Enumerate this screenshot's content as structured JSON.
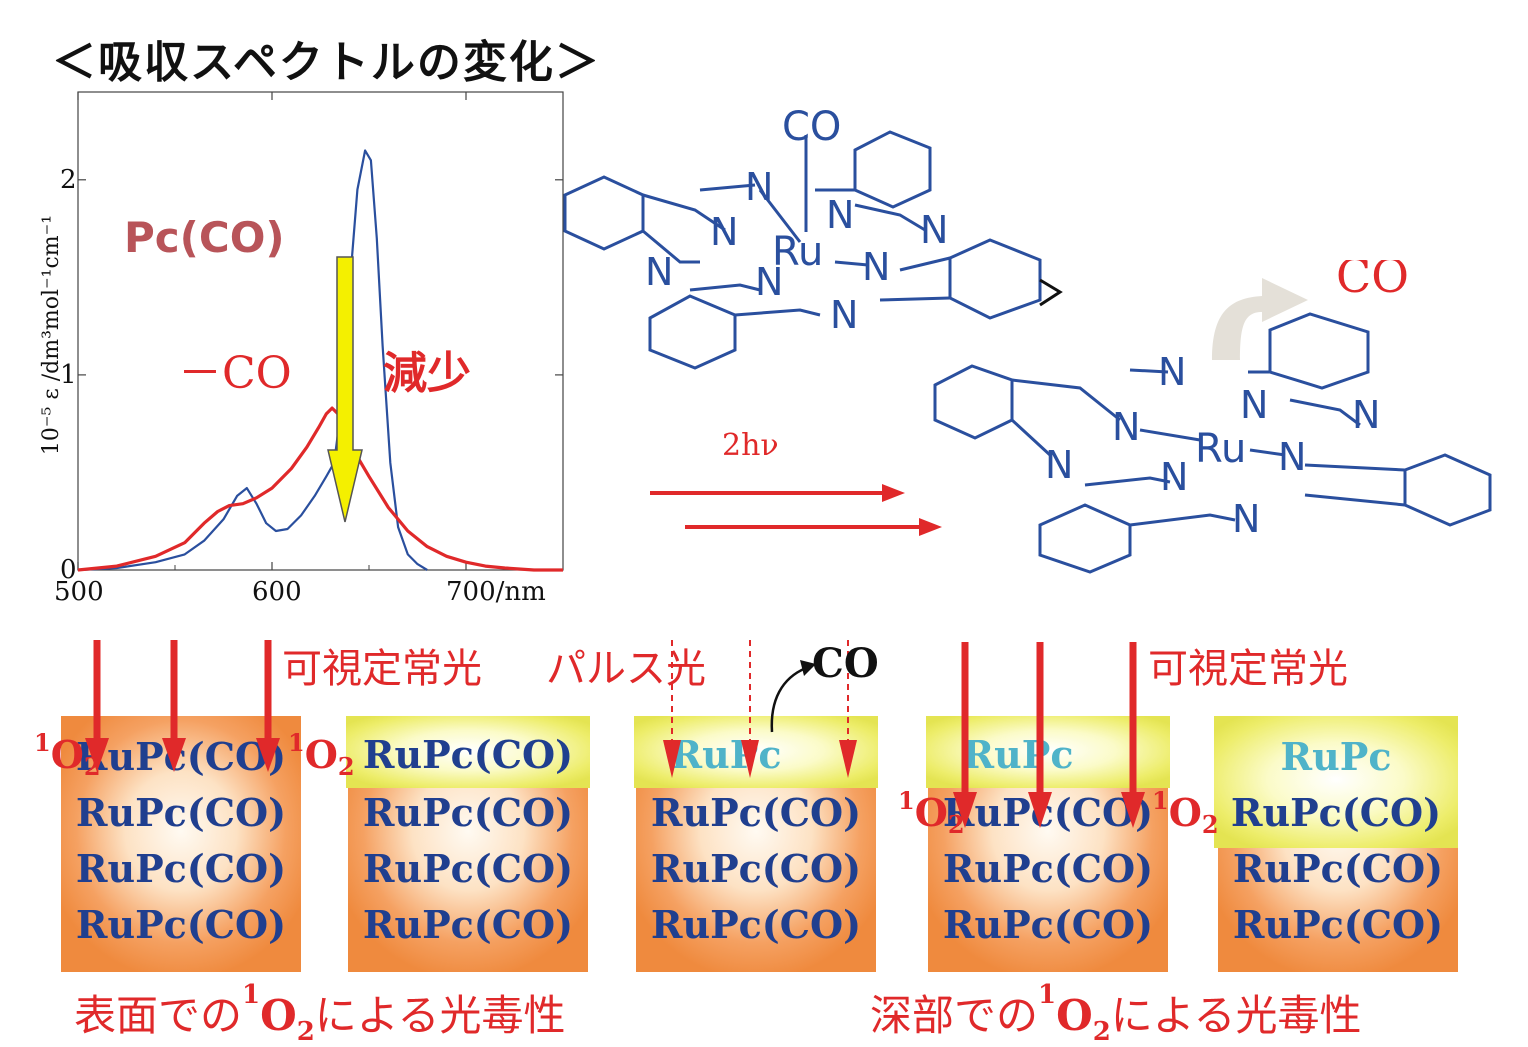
{
  "title": "＜吸収スペクトルの変化＞",
  "colors": {
    "red": "#e0292a",
    "blue": "#2a4f9e",
    "yellow": "#f4f000",
    "orange": "#ef8a3e",
    "cyan": "#4fb3c9"
  },
  "chart_data": {
    "type": "line",
    "xlabel": "700/nm",
    "ylabel": "10⁻⁵ ε /dm³mol⁻¹cm⁻¹",
    "x_ticks": [
      "500",
      "600",
      "700/nm"
    ],
    "y_ticks": [
      "0",
      "1",
      "2"
    ],
    "xlim": [
      500,
      750
    ],
    "ylim": [
      0,
      2.45
    ],
    "grid": false,
    "annotations": {
      "pc_co": "Pc(CO)",
      "minus_co": "－CO",
      "decrease": "減少"
    },
    "series": [
      {
        "name": "Pc(CO)",
        "color": "#2a4f9e",
        "x": [
          500,
          520,
          540,
          555,
          565,
          575,
          582,
          587,
          592,
          597,
          602,
          608,
          615,
          622,
          628,
          632,
          636,
          640,
          644,
          648,
          651,
          654,
          657,
          661,
          665,
          670,
          675,
          680
        ],
        "y": [
          0.0,
          0.01,
          0.04,
          0.08,
          0.15,
          0.26,
          0.38,
          0.42,
          0.34,
          0.24,
          0.2,
          0.21,
          0.28,
          0.38,
          0.48,
          0.55,
          0.85,
          1.45,
          1.95,
          2.15,
          2.1,
          1.7,
          1.15,
          0.55,
          0.22,
          0.08,
          0.03,
          0.0
        ]
      },
      {
        "name": "－CO",
        "color": "#e0292a",
        "x": [
          500,
          520,
          540,
          555,
          565,
          572,
          578,
          585,
          592,
          600,
          610,
          618,
          624,
          628,
          631,
          634,
          638,
          644,
          650,
          660,
          670,
          680,
          690,
          700,
          710,
          720,
          735,
          750
        ],
        "y": [
          0.0,
          0.02,
          0.07,
          0.14,
          0.24,
          0.3,
          0.33,
          0.34,
          0.37,
          0.42,
          0.52,
          0.63,
          0.73,
          0.8,
          0.83,
          0.8,
          0.66,
          0.58,
          0.48,
          0.32,
          0.2,
          0.12,
          0.07,
          0.04,
          0.02,
          0.01,
          0.0,
          0.0
        ]
      }
    ]
  },
  "molecule": {
    "labels_top": {
      "co": "CO",
      "ru": "Ru",
      "n": "N"
    },
    "labels_bottom": {
      "ru": "Ru",
      "n": "N"
    },
    "released_co": "CO",
    "photon": "2hν"
  },
  "light_labels": {
    "visible_cw_left": "可視定常光",
    "pulse": "パルス光",
    "visible_cw_right": "可視定常光",
    "co_release": "CO"
  },
  "stacks": [
    {
      "rows": [
        "RuPc(CO)",
        "RuPc(CO)",
        "RuPc(CO)",
        "RuPc(CO)"
      ]
    },
    {
      "cap": "RuPc(CO)",
      "rows": [
        "RuPc(CO)",
        "RuPc(CO)",
        "RuPc(CO)"
      ]
    },
    {
      "cap": "RuPc",
      "rows": [
        "RuPc(CO)",
        "RuPc(CO)",
        "RuPc(CO)"
      ]
    },
    {
      "cap": "RuPc",
      "rows": [
        "RuPc(CO)",
        "RuPc(CO)",
        "RuPc(CO)"
      ]
    },
    {
      "cap": "RuPc",
      "rows": [
        "RuPc(CO)",
        "RuPc(CO)",
        "RuPc(CO)"
      ]
    }
  ],
  "singlet_oxygen": {
    "sup": "1",
    "base": "O",
    "sub": "2"
  },
  "captions": {
    "surface_pre": "表面での",
    "surface_post": "による光毒性",
    "deep_pre": "深部での",
    "deep_post": "による光毒性"
  }
}
